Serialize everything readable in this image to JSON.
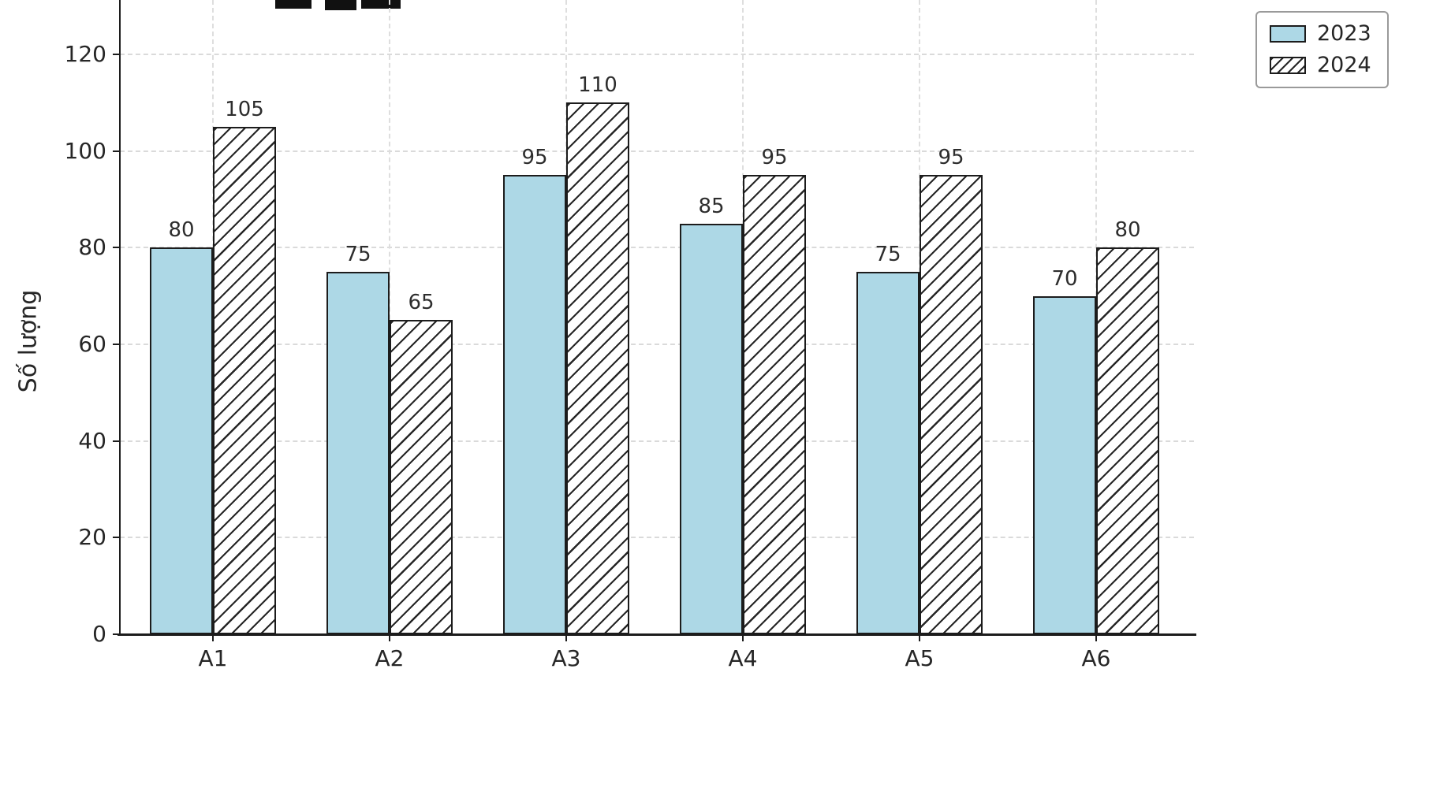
{
  "chart_data": {
    "type": "bar",
    "categories": [
      "A1",
      "A2",
      "A3",
      "A4",
      "A5",
      "A6"
    ],
    "series": [
      {
        "name": "2023",
        "values": [
          80,
          75,
          95,
          85,
          75,
          70
        ],
        "style": "solid",
        "color": "#ADD8E6"
      },
      {
        "name": "2024",
        "values": [
          105,
          65,
          110,
          95,
          95,
          80
        ],
        "style": "hatched",
        "color": "#FFFFFF"
      }
    ],
    "title": "",
    "xlabel": "",
    "ylabel": "Số lượng",
    "yticks": [
      0,
      20,
      40,
      60,
      80,
      100,
      120
    ],
    "ylim": [
      0,
      131
    ],
    "grid": true,
    "grid_style": "dashed",
    "legend_position": "top-right",
    "bar_edge_color": "#1c1c1c",
    "hatch_pattern": "//",
    "value_labels": true
  }
}
